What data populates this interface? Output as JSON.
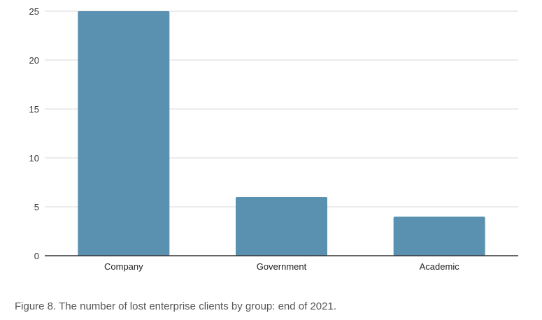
{
  "caption": "Figure 8. The number of lost enterprise clients by group: end of 2021.",
  "chart_data": {
    "type": "bar",
    "title": "",
    "xlabel": "",
    "ylabel": "",
    "categories": [
      "Company",
      "Government",
      "Academic"
    ],
    "values": [
      25,
      6,
      4
    ],
    "ylim": [
      0,
      25
    ],
    "yticks": [
      0,
      5,
      10,
      15,
      20,
      25
    ],
    "grid": true,
    "legend": "none",
    "bar_color": "#5b91b0"
  }
}
